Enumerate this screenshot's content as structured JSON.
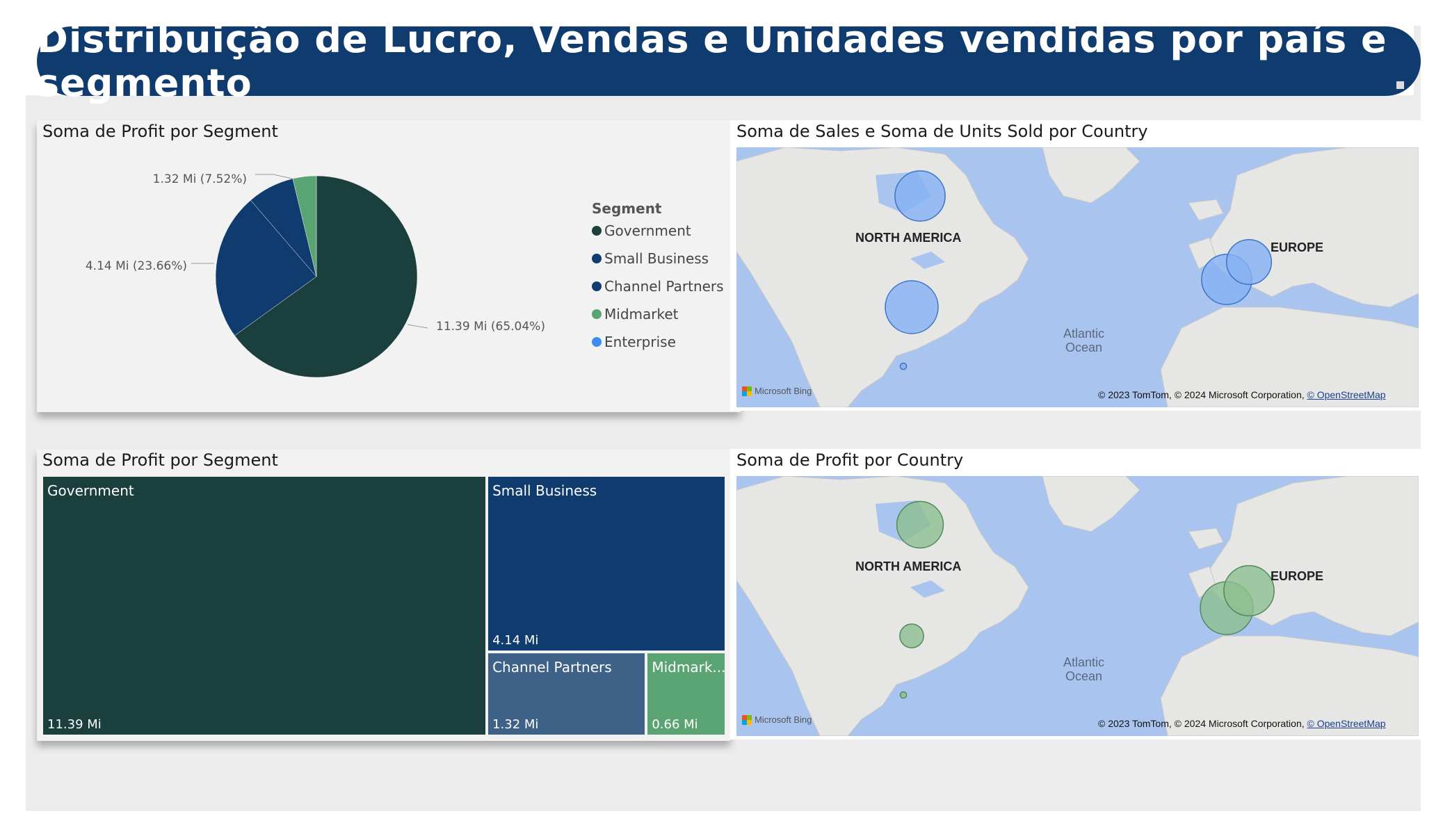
{
  "header": {
    "title": "Distribuição de Lucro, Vendas e Unidades vendidas por país e segmento"
  },
  "colors": {
    "banner": "#0f3b6e",
    "government": "#1a3f3c",
    "small_business": "#0f3b6e",
    "channel_partners": "#3e6188",
    "midmarket": "#5aa473",
    "enterprise": "#3b8df0",
    "map_bubble_blue": "#84b2f4",
    "map_bubble_green": "#8dbf90"
  },
  "pie_panel": {
    "title": "Soma de Profit por Segment"
  },
  "legend": {
    "title": "Segment",
    "items": [
      {
        "label": "Government",
        "color": "#1a3f3c"
      },
      {
        "label": "Small Business",
        "color": "#0f3b6e"
      },
      {
        "label": "Channel Partners",
        "color": "#0f3b6e"
      },
      {
        "label": "Midmarket",
        "color": "#5aa473"
      },
      {
        "label": "Enterprise",
        "color": "#3b8df0"
      }
    ]
  },
  "map1": {
    "title": "Soma de Sales e Soma de Units Sold por Country"
  },
  "map2": {
    "title": "Soma de Profit por Country"
  },
  "map_labels": {
    "north_america": "NORTH AMERICA",
    "europe": "EUROPE",
    "ocean_line1": "Atlantic",
    "ocean_line2": "Ocean",
    "bing": "Microsoft Bing",
    "copyright": "© 2023 TomTom, © 2024 Microsoft Corporation,",
    "osm": "© OpenStreetMap"
  },
  "treemap_panel": {
    "title": "Soma de Profit por Segment"
  },
  "chart_data": [
    {
      "type": "pie",
      "title": "Soma de Profit por Segment",
      "unit": "Mi",
      "slices": [
        {
          "name": "Government",
          "value": 11.39,
          "percent": 65.04,
          "label": "11.39 Mi (65.04%)"
        },
        {
          "name": "Small Business",
          "value": 4.14,
          "percent": 23.66,
          "label": "4.14 Mi (23.66%)"
        },
        {
          "name": "Channel Partners",
          "value": 1.32,
          "percent": 7.52,
          "label": "1.32 Mi (7.52%)"
        },
        {
          "name": "Midmarket",
          "value": 0.66,
          "percent": 3.77,
          "label": ""
        },
        {
          "name": "Enterprise",
          "value": 0.0,
          "percent": 0.0,
          "label": ""
        }
      ],
      "legend_position": "right"
    },
    {
      "type": "treemap",
      "title": "Soma de Profit por Segment",
      "cells": [
        {
          "name": "Government",
          "value": 11.39,
          "label": "Government",
          "value_label": "11.39 Mi"
        },
        {
          "name": "Small Business",
          "value": 4.14,
          "label": "Small Business",
          "value_label": "4.14 Mi"
        },
        {
          "name": "Channel Partners",
          "value": 1.32,
          "label": "Channel Partners",
          "value_label": "1.32 Mi"
        },
        {
          "name": "Midmarket",
          "value": 0.66,
          "label": "Midmark...",
          "value_label": "0.66 Mi"
        }
      ]
    },
    {
      "type": "map",
      "title": "Soma de Sales e Soma de Units Sold por Country",
      "bubbles": [
        {
          "location": "Canada",
          "size": 0.95
        },
        {
          "location": "United States of America",
          "size": 1.0
        },
        {
          "location": "Mexico",
          "size": 0.12
        },
        {
          "location": "France",
          "size": 0.95
        },
        {
          "location": "Germany",
          "size": 0.85
        }
      ]
    },
    {
      "type": "map",
      "title": "Soma de Profit por Country",
      "bubbles": [
        {
          "location": "Canada",
          "size": 0.88
        },
        {
          "location": "United States of America",
          "size": 0.45
        },
        {
          "location": "Mexico",
          "size": 0.12
        },
        {
          "location": "France",
          "size": 1.0
        },
        {
          "location": "Germany",
          "size": 0.95
        }
      ]
    }
  ]
}
